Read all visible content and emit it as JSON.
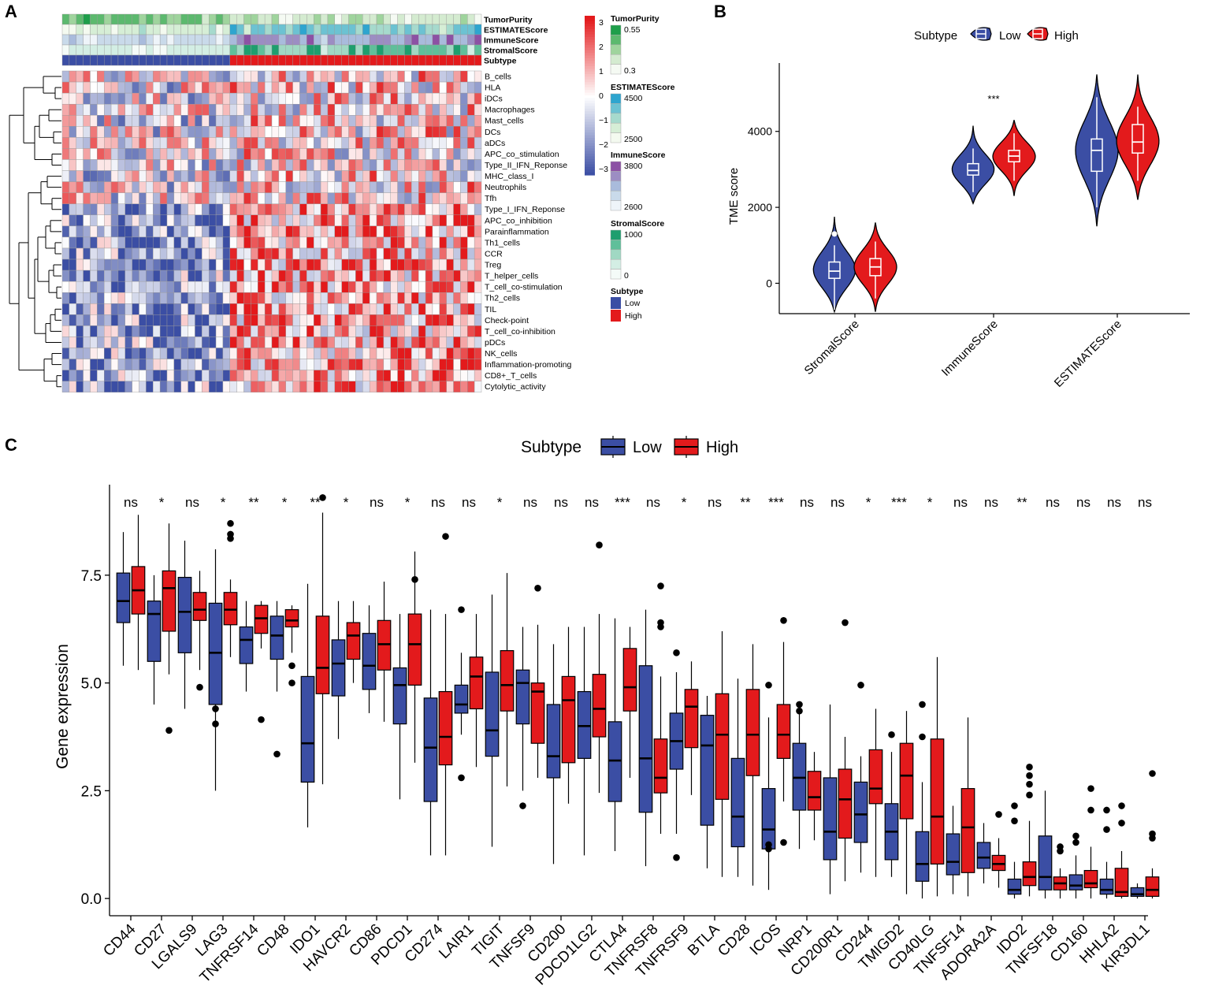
{
  "panels": {
    "a": {
      "label": "A",
      "annotation_rows": [
        "TumorPurity",
        "ESTIMATEScore",
        "ImmuneScore",
        "StromalScore",
        "Subtype"
      ],
      "rows": [
        "B_cells",
        "HLA",
        "iDCs",
        "Macrophages",
        "Mast_cells",
        "DCs",
        "aDCs",
        "APC_co_stimulation",
        "Type_II_IFN_Reponse",
        "MHC_class_I",
        "Neutrophils",
        "Tfh",
        "Type_I_IFN_Reponse",
        "APC_co_inhibition",
        "Parainflammation",
        "Th1_cells",
        "CCR",
        "Treg",
        "T_helper_cells",
        "T_cell_co-stimulation",
        "Th2_cells",
        "TIL",
        "Check-point",
        "T_cell_co-inhibition",
        "pDCs",
        "NK_cells",
        "Inflammation-promoting",
        "CD8+_T_cells",
        "Cytolytic_activity"
      ],
      "n_columns": 60,
      "n_low": 24,
      "colorbar_ticks": [
        "3",
        "2",
        "1",
        "0",
        "−1",
        "−2",
        "−3"
      ],
      "legends": [
        {
          "title": "TumorPurity",
          "high": "0.55",
          "low": "0.3",
          "colors": [
            "#1e9e4a",
            "#5cb96e",
            "#9fd49d",
            "#d4ebd0",
            "#f5faf3"
          ]
        },
        {
          "title": "ESTIMATEScore",
          "high": "4500",
          "low": "2500",
          "colors": [
            "#2ea5cf",
            "#6cc2d2",
            "#a6dacd",
            "#d6eed6",
            "#f4faf0"
          ]
        },
        {
          "title": "ImmuneScore",
          "high": "3800",
          "low": "2600",
          "colors": [
            "#8c51a4",
            "#9c8dc3",
            "#a9bbdc",
            "#c9daea",
            "#eef4f9"
          ]
        },
        {
          "title": "StromalScore",
          "high": "1000",
          "low": "0",
          "colors": [
            "#1e9e6e",
            "#5fbf9a",
            "#a0d8c3",
            "#d3eee4",
            "#f4fbf8"
          ]
        }
      ],
      "subtype_legend": {
        "title": "Subtype",
        "items": [
          {
            "label": "Low",
            "color": "#3b4ea4"
          },
          {
            "label": "High",
            "color": "#e31a1c"
          }
        ]
      }
    },
    "b": {
      "label": "B",
      "legend_title": "Subtype",
      "ylabel": "TME score",
      "significance": [
        "",
        "***",
        ""
      ]
    },
    "c": {
      "label": "C",
      "legend_title": "Subtype",
      "ylabel": "Gene expression",
      "significance": [
        "ns",
        "*",
        "ns",
        "*",
        "**",
        "*",
        "**",
        "*",
        "ns",
        "*",
        "ns",
        "ns",
        "*",
        "ns",
        "ns",
        "ns",
        "***",
        "ns",
        "*",
        "ns",
        "**",
        "***",
        "ns",
        "ns",
        "*",
        "***",
        "*",
        "ns",
        "ns",
        "**",
        "ns",
        "ns",
        "ns",
        "ns"
      ]
    }
  },
  "colors": {
    "low": "#3b4ea4",
    "high": "#e31a1c"
  },
  "chart_data": [
    {
      "type": "heatmap",
      "title": "",
      "rows": "see panels.a.rows",
      "color_range": [
        -3,
        3
      ],
      "colormap": [
        "#3b4ea4",
        "#ffffff",
        "#e31a1c"
      ],
      "annotations": [
        "TumorPurity",
        "ESTIMATEScore",
        "ImmuneScore",
        "StromalScore",
        "Subtype"
      ]
    },
    {
      "type": "violin",
      "title": "",
      "xlabel": "",
      "ylabel": "TME score",
      "categories": [
        "StromalScore",
        "ImmuneScore",
        "ESTIMATEScore"
      ],
      "ylim": [
        -800,
        5800
      ],
      "yticks": [
        0,
        2000,
        4000
      ],
      "series": [
        {
          "name": "Low",
          "color": "#3b4ea4",
          "stats": [
            {
              "min": -700,
              "q1": 130,
              "median": 320,
              "q3": 560,
              "max": 1000,
              "outliers": [
                1300
              ],
              "vmin": -750,
              "vmax": 1750
            },
            {
              "min": 2400,
              "q1": 2850,
              "median": 2970,
              "q3": 3150,
              "max": 3550,
              "outliers": [],
              "vmin": 2100,
              "vmax": 4150
            },
            {
              "min": 2000,
              "q1": 2950,
              "median": 3500,
              "q3": 3800,
              "max": 4900,
              "outliers": [],
              "vmin": 1500,
              "vmax": 5500
            }
          ]
        },
        {
          "name": "High",
          "color": "#e31a1c",
          "stats": [
            {
              "min": -400,
              "q1": 200,
              "median": 430,
              "q3": 650,
              "max": 1100,
              "outliers": [],
              "vmin": -750,
              "vmax": 1600
            },
            {
              "min": 2700,
              "q1": 3200,
              "median": 3350,
              "q3": 3500,
              "max": 3950,
              "outliers": [],
              "vmin": 2300,
              "vmax": 4300
            },
            {
              "min": 2700,
              "q1": 3430,
              "median": 3720,
              "q3": 4180,
              "max": 4650,
              "outliers": [],
              "vmin": 2200,
              "vmax": 5500
            }
          ]
        }
      ]
    },
    {
      "type": "box",
      "title": "",
      "xlabel": "",
      "ylabel": "Gene expression",
      "categories": [
        "CD44",
        "CD27",
        "LGALS9",
        "LAG3",
        "TNFRSF14",
        "CD48",
        "IDO1",
        "HAVCR2",
        "CD86",
        "PDCD1",
        "CD274",
        "LAIR1",
        "TIGIT",
        "TNFSF9",
        "CD200",
        "PDCD1LG2",
        "CTLA4",
        "TNFRSF8",
        "TNFRSF9",
        "BTLA",
        "CD28",
        "ICOS",
        "NRP1",
        "CD200R1",
        "CD244",
        "TMIGD2",
        "CD40LG",
        "TNFSF14",
        "ADORA2A",
        "IDO2",
        "TNFSF18",
        "CD160",
        "HHLA2",
        "KIR3DL1"
      ],
      "ylim": [
        -0.4,
        9.6
      ],
      "yticks": [
        0.0,
        2.5,
        5.0,
        7.5
      ],
      "series": [
        {
          "name": "Low",
          "color": "#3b4ea4",
          "stats": [
            [
              5.4,
              6.4,
              6.9,
              7.55,
              8.5,
              []
            ],
            [
              4.5,
              5.5,
              6.6,
              6.9,
              7.5,
              []
            ],
            [
              4.4,
              5.7,
              6.65,
              7.45,
              8.3,
              []
            ],
            [
              2.5,
              4.5,
              5.7,
              6.85,
              8.1,
              [
                4.4,
                4.05
              ]
            ],
            [
              4.8,
              5.45,
              6.0,
              6.3,
              6.9,
              []
            ],
            [
              4.8,
              5.55,
              6.1,
              6.55,
              6.9,
              [
                3.35
              ]
            ],
            [
              1.65,
              2.7,
              3.6,
              5.15,
              7.3,
              []
            ],
            [
              3.7,
              4.7,
              5.45,
              6.0,
              6.9,
              []
            ],
            [
              4.3,
              4.85,
              5.4,
              6.15,
              6.8,
              []
            ],
            [
              2.3,
              4.05,
              4.95,
              5.35,
              6.6,
              []
            ],
            [
              1.0,
              2.25,
              3.5,
              4.65,
              6.7,
              []
            ],
            [
              3.8,
              4.3,
              4.5,
              4.95,
              5.7,
              [
                6.7,
                2.8
              ]
            ],
            [
              1.2,
              3.3,
              3.9,
              5.25,
              7.05,
              []
            ],
            [
              2.5,
              4.05,
              5.0,
              5.3,
              6.3,
              [
                2.15
              ]
            ],
            [
              0.8,
              2.8,
              3.3,
              4.5,
              5.9,
              []
            ],
            [
              1.0,
              3.25,
              4.0,
              4.8,
              6.3,
              []
            ],
            [
              1.1,
              2.25,
              3.2,
              4.1,
              6.5,
              []
            ],
            [
              0.75,
              2.0,
              3.25,
              5.4,
              6.7,
              []
            ],
            [
              1.5,
              3.0,
              3.65,
              4.3,
              5.25,
              [
                5.7,
                0.95
              ]
            ],
            [
              0.7,
              1.7,
              3.55,
              4.25,
              4.7,
              []
            ],
            [
              0.5,
              1.2,
              1.9,
              3.25,
              5.1,
              []
            ],
            [
              0.2,
              1.15,
              1.6,
              2.55,
              4.2,
              [
                4.95,
                1.15,
                1.25
              ]
            ],
            [
              1.15,
              2.05,
              2.8,
              3.6,
              4.4,
              [
                4.5,
                4.35
              ]
            ],
            [
              0.1,
              0.9,
              1.55,
              2.8,
              4.5,
              []
            ],
            [
              0.6,
              1.3,
              1.95,
              2.7,
              3.3,
              [
                4.95
              ]
            ],
            [
              0.5,
              0.9,
              1.55,
              2.2,
              3.4,
              [
                3.8
              ]
            ],
            [
              0.0,
              0.4,
              0.8,
              1.55,
              2.7,
              [
                4.5,
                3.75
              ]
            ],
            [
              0.1,
              0.55,
              0.85,
              1.5,
              2.15,
              []
            ],
            [
              0.35,
              0.7,
              0.95,
              1.3,
              1.75,
              []
            ],
            [
              0.0,
              0.1,
              0.2,
              0.45,
              0.85,
              [
                2.15,
                1.8
              ]
            ],
            [
              0.0,
              0.2,
              0.5,
              1.45,
              2.5,
              []
            ],
            [
              0.0,
              0.2,
              0.3,
              0.55,
              1.0,
              [
                1.45,
                1.3
              ]
            ],
            [
              0.0,
              0.1,
              0.2,
              0.45,
              0.85,
              [
                2.05,
                1.6
              ]
            ],
            [
              0.0,
              0.05,
              0.1,
              0.25,
              0.35,
              []
            ]
          ]
        },
        {
          "name": "High",
          "color": "#e31a1c",
          "stats": [
            [
              5.3,
              6.6,
              7.15,
              7.7,
              8.9,
              []
            ],
            [
              5.2,
              6.2,
              7.2,
              7.6,
              8.7,
              [
                3.9
              ]
            ],
            [
              5.3,
              6.45,
              6.7,
              7.1,
              7.6,
              [
                4.9
              ]
            ],
            [
              5.6,
              6.35,
              6.7,
              7.1,
              7.4,
              [
                8.7,
                8.45,
                8.35
              ]
            ],
            [
              5.8,
              6.15,
              6.5,
              6.8,
              6.9,
              [
                4.15
              ]
            ],
            [
              5.7,
              6.3,
              6.45,
              6.7,
              6.8,
              [
                5.4,
                5.0
              ]
            ],
            [
              2.65,
              4.75,
              5.35,
              6.55,
              8.95,
              [
                9.3
              ]
            ],
            [
              5.0,
              5.55,
              6.1,
              6.4,
              6.9,
              []
            ],
            [
              4.1,
              5.3,
              5.9,
              6.45,
              7.35,
              []
            ],
            [
              3.15,
              4.95,
              5.9,
              6.6,
              8.05,
              [
                7.4
              ]
            ],
            [
              1.0,
              3.1,
              3.75,
              4.8,
              6.6,
              [
                8.4
              ]
            ],
            [
              3.05,
              4.4,
              5.15,
              5.6,
              6.6,
              []
            ],
            [
              2.6,
              4.35,
              4.95,
              5.75,
              7.55,
              []
            ],
            [
              2.8,
              3.6,
              4.8,
              5.0,
              6.35,
              [
                7.2
              ]
            ],
            [
              2.2,
              3.15,
              4.6,
              5.15,
              6.3,
              []
            ],
            [
              2.45,
              3.75,
              4.4,
              5.2,
              6.6,
              [
                8.2
              ]
            ],
            [
              2.8,
              4.35,
              4.9,
              5.8,
              6.3,
              []
            ],
            [
              1.5,
              2.45,
              2.8,
              3.7,
              5.15,
              [
                7.25,
                6.4,
                6.3
              ]
            ],
            [
              2.4,
              3.5,
              4.45,
              4.85,
              5.5,
              []
            ],
            [
              0.5,
              2.3,
              3.8,
              4.75,
              6.2,
              []
            ],
            [
              0.3,
              2.85,
              3.8,
              4.85,
              5.9,
              []
            ],
            [
              2.25,
              3.25,
              3.8,
              4.5,
              5.95,
              [
                6.45,
                1.3
              ]
            ],
            [
              1.35,
              2.05,
              2.35,
              2.95,
              3.4,
              []
            ],
            [
              0.4,
              1.4,
              2.3,
              3.0,
              3.75,
              [
                6.4
              ]
            ],
            [
              0.5,
              2.2,
              2.55,
              3.45,
              4.4,
              []
            ],
            [
              0.1,
              1.85,
              2.85,
              3.6,
              4.35,
              []
            ],
            [
              0.05,
              0.8,
              1.9,
              3.7,
              5.6,
              []
            ],
            [
              0.05,
              0.6,
              1.65,
              2.55,
              4.2,
              []
            ],
            [
              0.25,
              0.65,
              0.8,
              1.0,
              1.4,
              [
                1.95
              ]
            ],
            [
              0.05,
              0.3,
              0.5,
              0.85,
              1.8,
              [
                3.05,
                2.85,
                2.65,
                2.4
              ]
            ],
            [
              0.0,
              0.2,
              0.35,
              0.5,
              0.7,
              [
                1.2,
                1.1
              ]
            ],
            [
              0.0,
              0.25,
              0.35,
              0.65,
              1.2,
              [
                2.55,
                2.05
              ]
            ],
            [
              0.0,
              0.05,
              0.15,
              0.7,
              1.1,
              [
                2.15,
                1.75
              ]
            ],
            [
              0.0,
              0.05,
              0.2,
              0.5,
              0.7,
              [
                2.9,
                1.5,
                1.4
              ]
            ]
          ]
        }
      ]
    }
  ]
}
